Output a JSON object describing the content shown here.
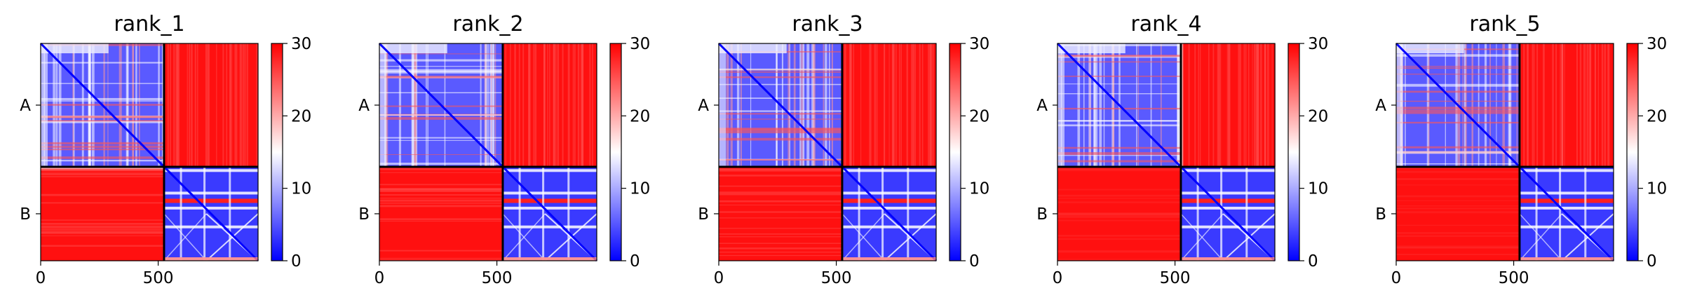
{
  "chart_data": [
    {
      "type": "heatmap",
      "title": "rank_1",
      "x_ticks": [
        0,
        500
      ],
      "y_ticks": [
        "A",
        "B"
      ],
      "colorbar": {
        "min": 0,
        "max": 30,
        "ticks": [
          0,
          10,
          20,
          30
        ],
        "colors": [
          "#0000ff",
          "#ffffff",
          "#ff0000"
        ]
      },
      "chain_lengths": {
        "A": 525,
        "B": 400
      },
      "xlim": [
        0,
        925
      ]
    },
    {
      "type": "heatmap",
      "title": "rank_2",
      "x_ticks": [
        0,
        500
      ],
      "y_ticks": [
        "A",
        "B"
      ],
      "colorbar": {
        "min": 0,
        "max": 30,
        "ticks": [
          0,
          10,
          20,
          30
        ],
        "colors": [
          "#0000ff",
          "#ffffff",
          "#ff0000"
        ]
      },
      "chain_lengths": {
        "A": 525,
        "B": 400
      },
      "xlim": [
        0,
        925
      ]
    },
    {
      "type": "heatmap",
      "title": "rank_3",
      "x_ticks": [
        0,
        500
      ],
      "y_ticks": [
        "A",
        "B"
      ],
      "colorbar": {
        "min": 0,
        "max": 30,
        "ticks": [
          0,
          10,
          20,
          30
        ],
        "colors": [
          "#0000ff",
          "#ffffff",
          "#ff0000"
        ]
      },
      "chain_lengths": {
        "A": 525,
        "B": 400
      },
      "xlim": [
        0,
        925
      ]
    },
    {
      "type": "heatmap",
      "title": "rank_4",
      "x_ticks": [
        0,
        500
      ],
      "y_ticks": [
        "A",
        "B"
      ],
      "colorbar": {
        "min": 0,
        "max": 30,
        "ticks": [
          0,
          10,
          20,
          30
        ],
        "colors": [
          "#0000ff",
          "#ffffff",
          "#ff0000"
        ]
      },
      "chain_lengths": {
        "A": 525,
        "B": 400
      },
      "xlim": [
        0,
        925
      ]
    },
    {
      "type": "heatmap",
      "title": "rank_5",
      "x_ticks": [
        0,
        500
      ],
      "y_ticks": [
        "A",
        "B"
      ],
      "colorbar": {
        "min": 0,
        "max": 30,
        "ticks": [
          0,
          10,
          20,
          30
        ],
        "colors": [
          "#0000ff",
          "#ffffff",
          "#ff0000"
        ]
      },
      "chain_lengths": {
        "A": 525,
        "B": 400
      },
      "xlim": [
        0,
        925
      ]
    }
  ]
}
